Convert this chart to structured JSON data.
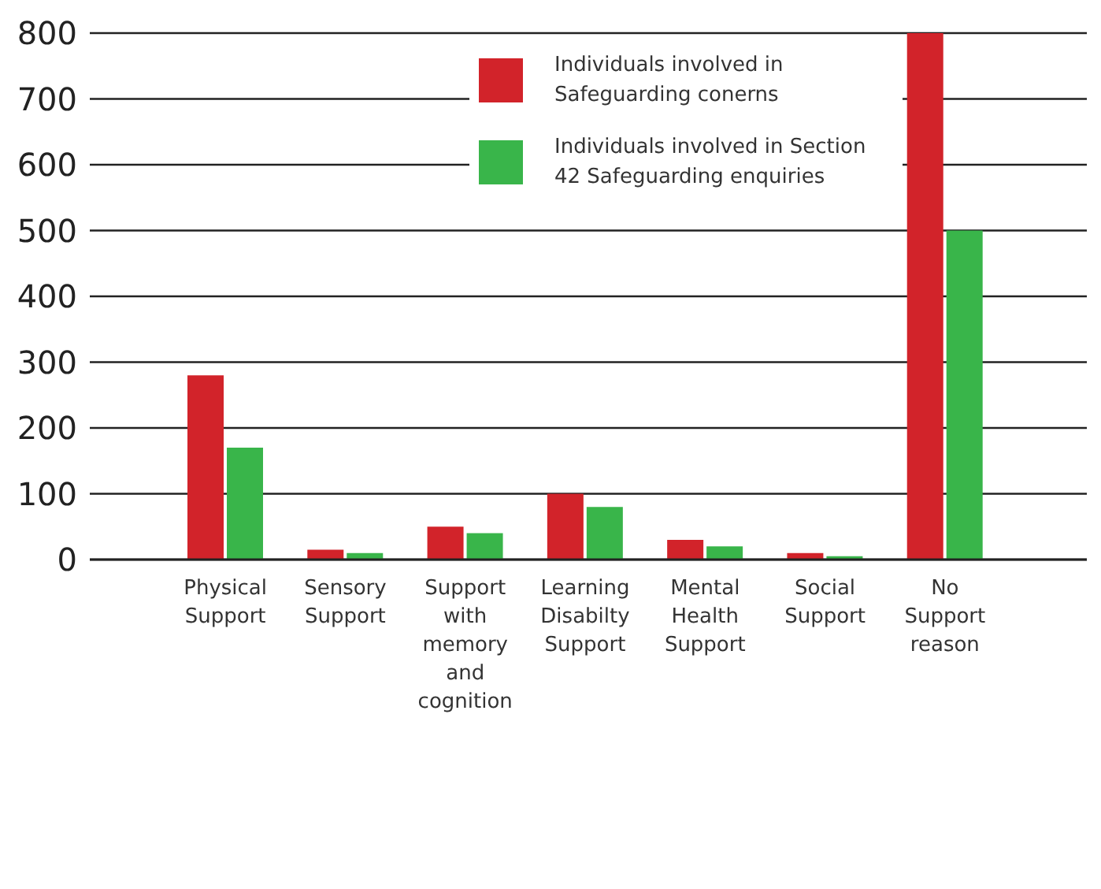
{
  "chart_data": {
    "type": "bar",
    "categories": [
      "Physical Support",
      "Sensory Support",
      "Support with memory and cognition",
      "Learning Disabilty Support",
      "Mental Health Support",
      "Social Support",
      "No Support reason"
    ],
    "series": [
      {
        "name": "Individuals involved in Safeguarding conerns",
        "color": "#d2232a",
        "values": [
          280,
          15,
          50,
          100,
          30,
          10,
          800
        ]
      },
      {
        "name": "Individuals involved in Section 42 Safeguarding enquiries",
        "color": "#39b54a",
        "values": [
          170,
          10,
          40,
          80,
          20,
          5,
          500
        ]
      }
    ],
    "ylim": [
      0,
      800
    ],
    "yticks": [
      0,
      100,
      200,
      300,
      400,
      500,
      600,
      700,
      800
    ],
    "grid": "y",
    "legend": "top"
  }
}
